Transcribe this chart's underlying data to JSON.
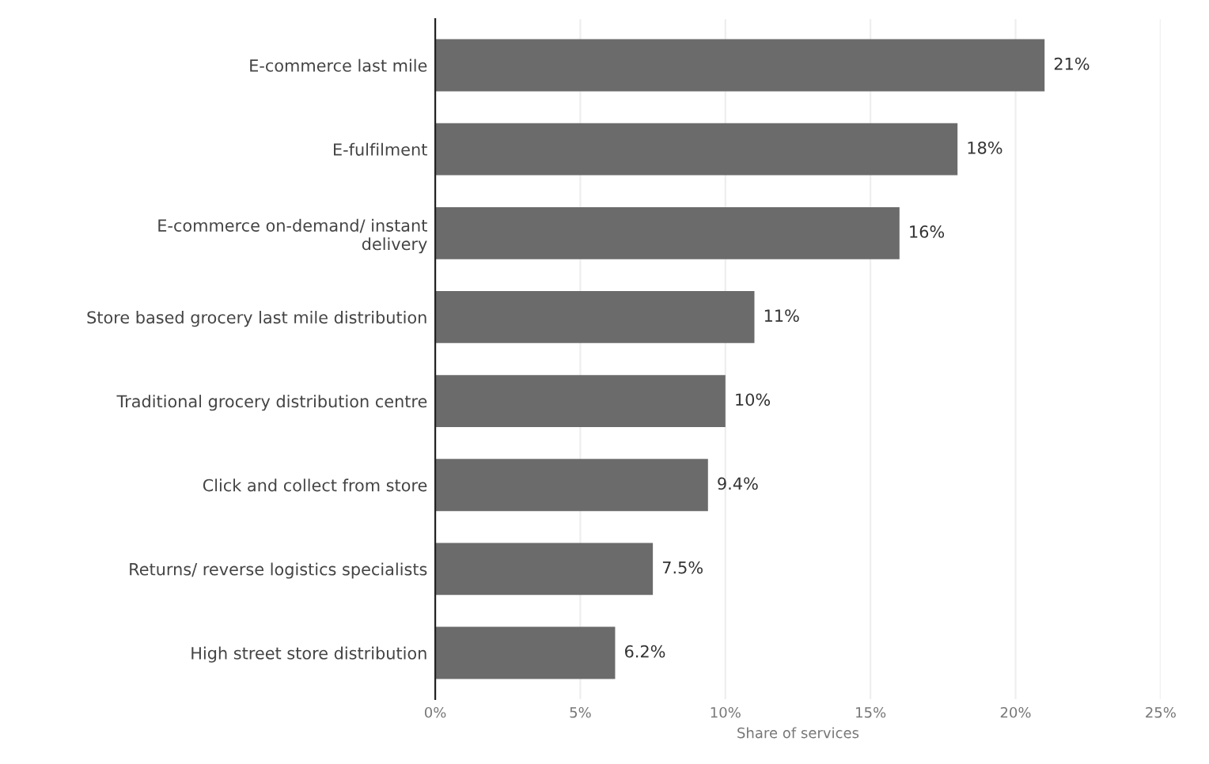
{
  "chart_data": {
    "type": "bar",
    "orientation": "horizontal",
    "xlabel": "Share of services",
    "categories": [
      "E-commerce last mile",
      "E-fulfilment",
      "E-commerce on-demand/ instant\ndelivery",
      "Store based grocery last mile distribution",
      "Traditional grocery distribution centre",
      "Click and collect from store",
      "Returns/ reverse logistics specialists",
      "High street store distribution"
    ],
    "values": [
      21,
      18,
      16,
      11,
      10,
      9.4,
      7.5,
      6.2
    ],
    "value_labels": [
      "21%",
      "18%",
      "16%",
      "11%",
      "10%",
      "9.4%",
      "7.5%",
      "6.2%"
    ],
    "color": "#6b6b6b",
    "xlim": [
      0,
      25
    ],
    "xticks": [
      {
        "value": 0,
        "label": "0%"
      },
      {
        "value": 5,
        "label": "5%"
      },
      {
        "value": 10,
        "label": "10%"
      },
      {
        "value": 15,
        "label": "15%"
      },
      {
        "value": 20,
        "label": "20%"
      },
      {
        "value": 25,
        "label": "25%"
      }
    ],
    "grid": "x"
  }
}
